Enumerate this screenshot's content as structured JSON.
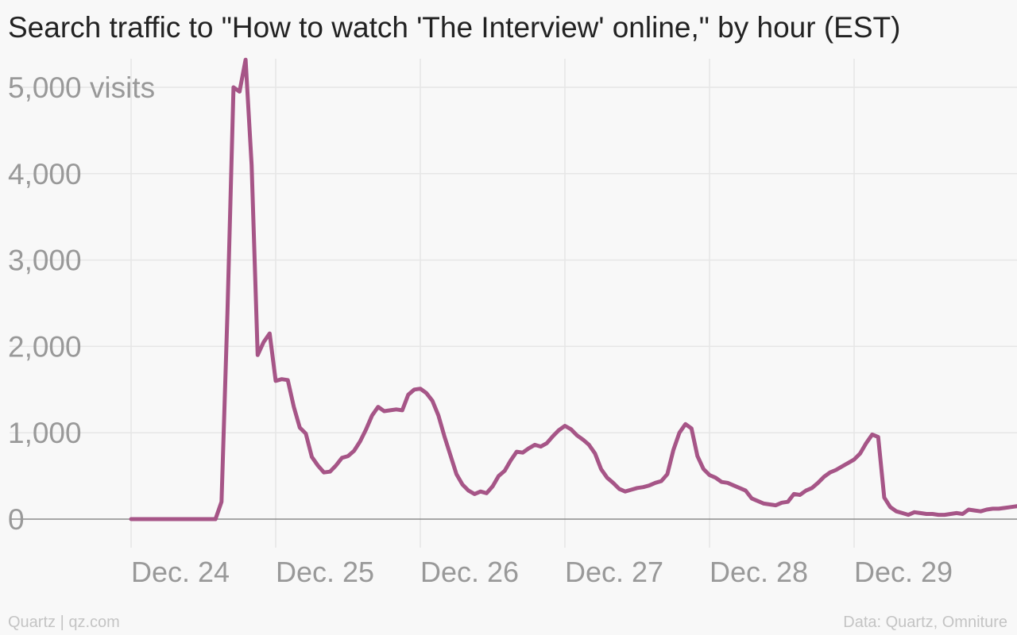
{
  "title": "Search traffic to \"How to watch 'The Interview' online,\" by hour (EST)",
  "footer": {
    "credit": "Quartz | qz.com",
    "source": "Data: Quartz, Omniture"
  },
  "colors": {
    "line": "#a65587",
    "grid": "#e6e6e6",
    "baseline": "#8a8a8a",
    "tick_label": "#999999",
    "background": "#f8f8f8"
  },
  "chart_data": {
    "type": "line",
    "title": "Search traffic to \"How to watch 'The Interview' online,\" by hour (EST)",
    "xlabel": "",
    "ylabel": "visits",
    "ylim": [
      0,
      5000
    ],
    "xlim": [
      "Dec. 24 00:00",
      "Dec. 29 23:00"
    ],
    "grid": true,
    "x_tick_labels": [
      "Dec. 24",
      "Dec. 25",
      "Dec. 26",
      "Dec. 27",
      "Dec. 28",
      "Dec. 29"
    ],
    "y_tick_labels": [
      {
        "value": 0,
        "label": "0"
      },
      {
        "value": 1000,
        "label": "1,000"
      },
      {
        "value": 2000,
        "label": "2,000"
      },
      {
        "value": 3000,
        "label": "3,000"
      },
      {
        "value": 4000,
        "label": "4,000"
      },
      {
        "value": 5000,
        "label": "5,000 visits"
      }
    ],
    "series": [
      {
        "values": [
          0,
          0,
          0,
          0,
          0,
          0,
          0,
          0,
          0,
          0,
          0,
          0,
          0,
          0,
          0,
          200,
          2400,
          5000,
          4950,
          5320,
          4100,
          1900,
          2050,
          2150,
          1600,
          1620,
          1610,
          1300,
          1060,
          990,
          720,
          620,
          540,
          550,
          620,
          710,
          730,
          790,
          900,
          1040,
          1200,
          1300,
          1250,
          1260,
          1270,
          1260,
          1440,
          1500,
          1510,
          1460,
          1370,
          1200,
          960,
          740,
          520,
          400,
          330,
          290,
          320,
          300,
          380,
          500,
          560,
          680,
          780,
          770,
          820,
          860,
          840,
          880,
          960,
          1030,
          1080,
          1040,
          970,
          920,
          860,
          760,
          580,
          480,
          420,
          350,
          320,
          340,
          360,
          370,
          390,
          420,
          440,
          520,
          800,
          1000,
          1100,
          1050,
          730,
          580,
          510,
          480,
          430,
          420,
          390,
          360,
          330,
          240,
          210,
          180,
          170,
          160,
          190,
          200,
          290,
          280,
          330,
          360,
          420,
          490,
          540,
          570,
          610,
          650,
          690,
          760,
          880,
          980,
          950,
          250,
          140,
          90,
          70,
          50,
          80,
          70,
          60,
          60,
          50,
          50,
          60,
          70,
          60,
          110,
          100,
          90,
          110,
          120,
          120,
          130,
          140,
          150,
          150,
          140,
          140,
          130,
          120,
          110,
          110,
          100
        ]
      }
    ]
  }
}
